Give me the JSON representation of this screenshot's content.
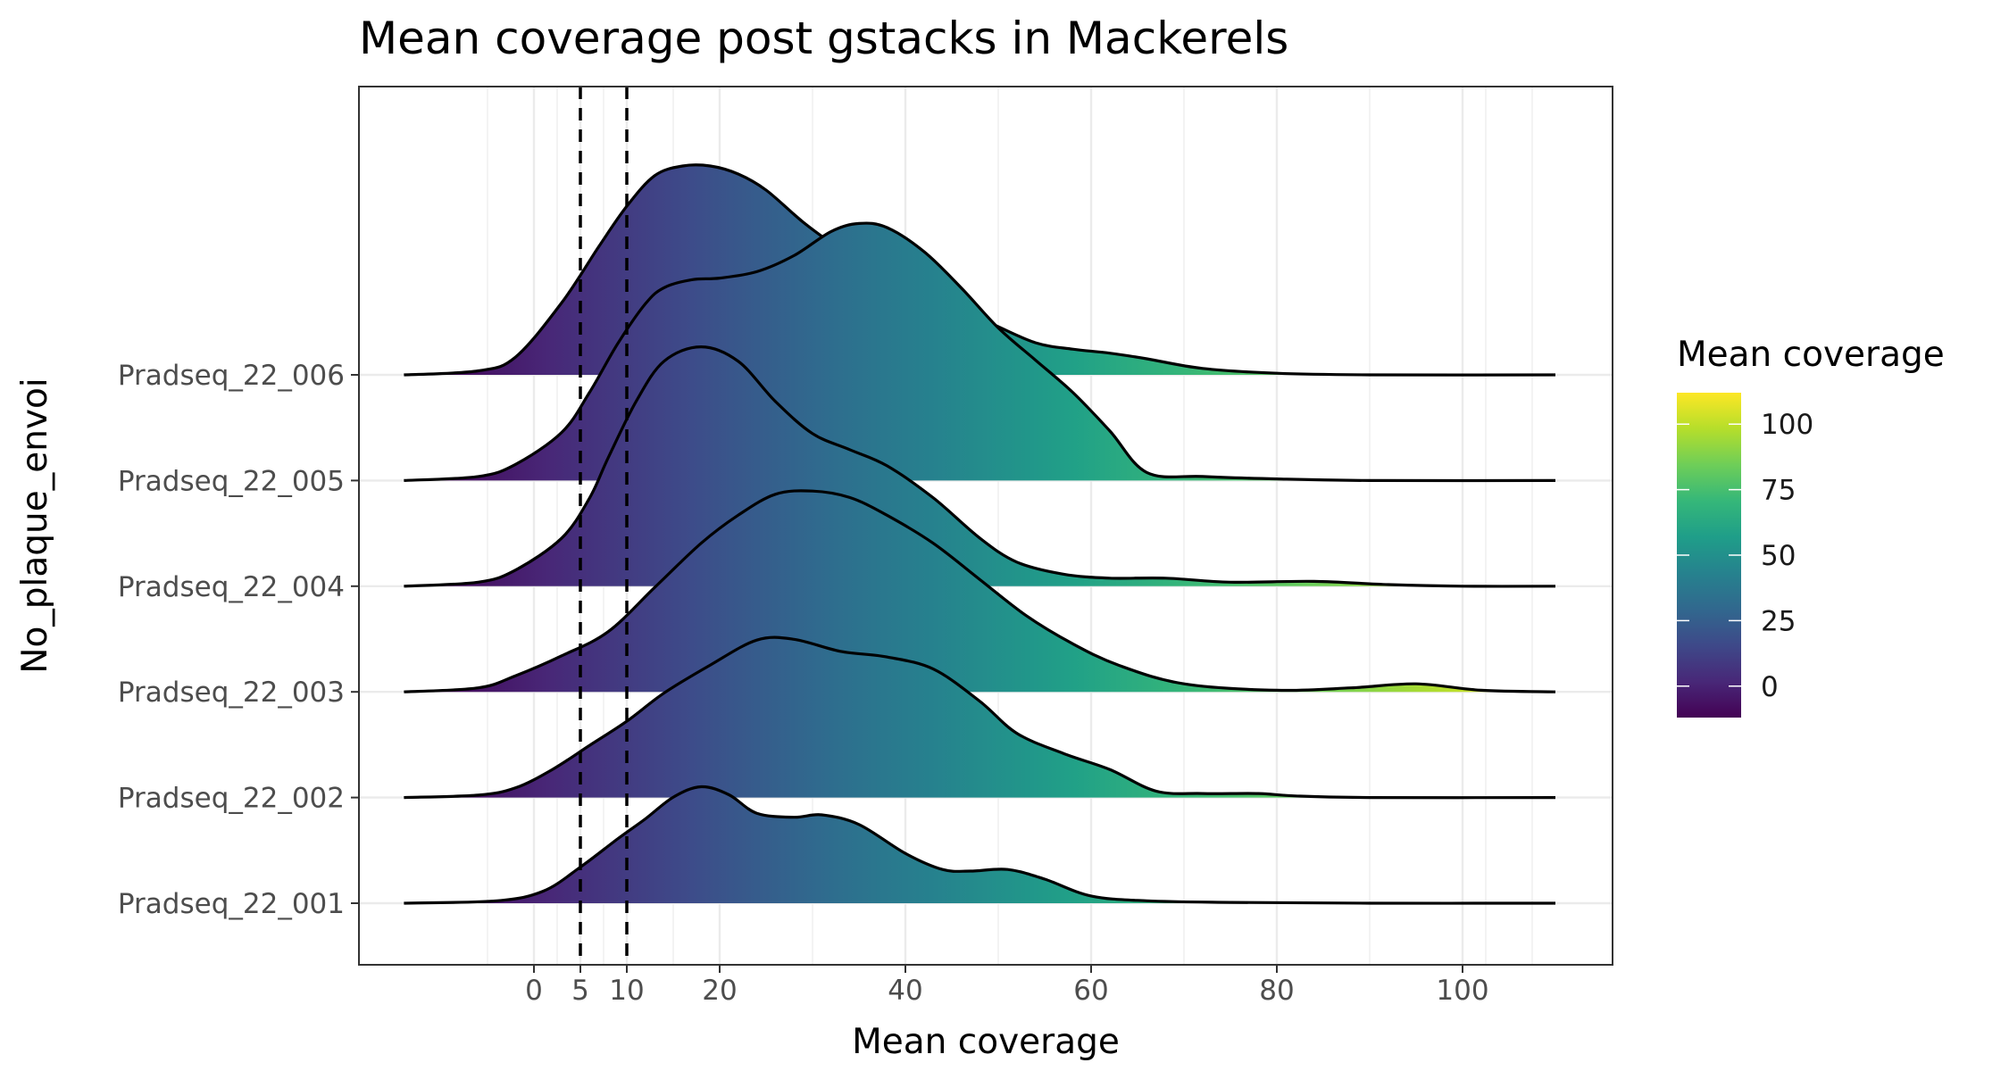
{
  "chart_data": {
    "type": "ridgeline",
    "title": "Mean coverage post gstacks in Mackerels",
    "xlabel": "Mean coverage",
    "ylabel": "No_plaque_envoi",
    "x_ticks": [
      0,
      5,
      10,
      20,
      40,
      60,
      80,
      100
    ],
    "x_range": [
      -20,
      115
    ],
    "density_x_range": [
      -14,
      110
    ],
    "reference_lines": [
      5,
      10
    ],
    "reference_line_style": "dashed",
    "grid": true,
    "categories": [
      "Pradseq_22_001",
      "Pradseq_22_002",
      "Pradseq_22_003",
      "Pradseq_22_004",
      "Pradseq_22_005",
      "Pradseq_22_006"
    ],
    "series": [
      {
        "name": "Pradseq_22_001",
        "x": [
          -14,
          -4,
          1,
          5,
          9,
          12,
          15,
          18,
          21,
          24,
          28,
          31,
          35,
          40,
          44,
          47,
          51,
          55,
          60,
          66,
          75,
          90,
          110
        ],
        "y": [
          0,
          0.03,
          0.15,
          0.45,
          0.8,
          1.05,
          1.32,
          1.45,
          1.35,
          1.12,
          1.07,
          1.1,
          0.98,
          0.62,
          0.42,
          0.4,
          0.42,
          0.3,
          0.09,
          0.03,
          0.01,
          0,
          0
        ]
      },
      {
        "name": "Pradseq_22_002",
        "x": [
          -14,
          -6,
          -2,
          2,
          6,
          10,
          14,
          19,
          24,
          28,
          33,
          38,
          43,
          48,
          52,
          57,
          62,
          67,
          72,
          78,
          82,
          90,
          110
        ],
        "y": [
          0,
          0.03,
          0.12,
          0.35,
          0.65,
          0.95,
          1.3,
          1.65,
          1.96,
          1.97,
          1.82,
          1.75,
          1.6,
          1.2,
          0.8,
          0.55,
          0.35,
          0.08,
          0.05,
          0.05,
          0.02,
          0,
          0
        ]
      },
      {
        "name": "Pradseq_22_003",
        "x": [
          -14,
          -6,
          -2,
          3,
          8,
          13,
          18,
          22,
          26,
          30,
          34,
          38,
          43,
          48,
          53,
          58,
          63,
          70,
          80,
          88,
          95,
          102,
          110
        ],
        "y": [
          0,
          0.05,
          0.2,
          0.45,
          0.75,
          1.3,
          1.85,
          2.2,
          2.46,
          2.5,
          2.42,
          2.2,
          1.85,
          1.4,
          0.95,
          0.6,
          0.33,
          0.1,
          0.02,
          0.05,
          0.1,
          0.02,
          0
        ]
      },
      {
        "name": "Pradseq_22_004",
        "x": [
          -14,
          -6,
          -2,
          3,
          6,
          8,
          11,
          14,
          18,
          22,
          26,
          30,
          34,
          38,
          43,
          48,
          52,
          57,
          62,
          68,
          75,
          84,
          92,
          100,
          110
        ],
        "y": [
          0,
          0.05,
          0.2,
          0.6,
          1.1,
          1.6,
          2.3,
          2.8,
          2.98,
          2.8,
          2.3,
          1.9,
          1.7,
          1.5,
          1.1,
          0.6,
          0.3,
          0.15,
          0.1,
          0.1,
          0.05,
          0.06,
          0.02,
          0,
          0
        ]
      },
      {
        "name": "Pradseq_22_005",
        "x": [
          -14,
          -6,
          -2,
          3,
          6,
          9,
          12,
          14,
          17,
          20,
          24,
          28,
          32,
          35,
          38,
          42,
          46,
          50,
          54,
          58,
          62,
          66,
          72,
          80,
          90,
          110
        ],
        "y": [
          0,
          0.05,
          0.2,
          0.6,
          1.1,
          1.7,
          2.2,
          2.4,
          2.5,
          2.52,
          2.6,
          2.8,
          3.1,
          3.2,
          3.15,
          2.85,
          2.4,
          1.9,
          1.5,
          1.1,
          0.62,
          0.1,
          0.05,
          0.02,
          0,
          0
        ]
      },
      {
        "name": "Pradseq_22_006",
        "x": [
          -14,
          -6,
          -2,
          3,
          7,
          10,
          13,
          16,
          19,
          22,
          25,
          29,
          33,
          37,
          41,
          45,
          49,
          54,
          58,
          62,
          66,
          72,
          80,
          90,
          110
        ],
        "y": [
          0,
          0.05,
          0.22,
          0.9,
          1.6,
          2.1,
          2.48,
          2.6,
          2.6,
          2.5,
          2.3,
          1.9,
          1.55,
          1.15,
          0.93,
          0.82,
          0.65,
          0.4,
          0.32,
          0.27,
          0.2,
          0.08,
          0.02,
          0,
          0
        ]
      }
    ],
    "legend": {
      "title": "Mean coverage",
      "placement": "right",
      "ticks": [
        0,
        25,
        50,
        75,
        100
      ],
      "range": [
        -12,
        112
      ],
      "colors": [
        "#440154",
        "#482878",
        "#3e4989",
        "#31688e",
        "#26828e",
        "#1f9e89",
        "#35b779",
        "#6ece58",
        "#b5de2b",
        "#fde725"
      ]
    },
    "colors": {
      "background": "#ffffff",
      "outline": "#000000",
      "grid": "#ebebeb",
      "panel_border": "#333333"
    }
  }
}
